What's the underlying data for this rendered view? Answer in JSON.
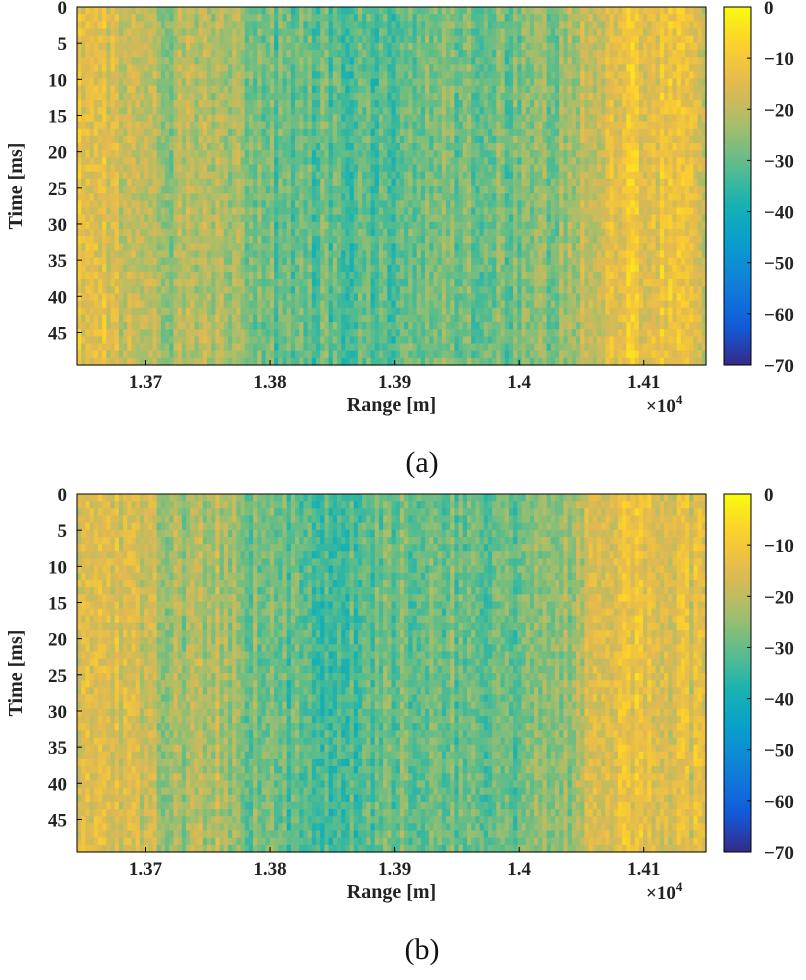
{
  "chart_data": [
    {
      "type": "heatmap",
      "caption": "(a)",
      "xlabel": "Range [m]",
      "ylabel": "Time [ms]",
      "x_ticks": [
        1.37,
        1.38,
        1.39,
        1.4,
        1.41
      ],
      "x_tick_labels": [
        "1.37",
        "1.38",
        "1.39",
        "1.4",
        "1.41"
      ],
      "x_exponent": "×10",
      "x_exponent_power": "4",
      "xlim": [
        1.3645,
        1.415
      ],
      "y_ticks": [
        0,
        5,
        10,
        15,
        20,
        25,
        30,
        35,
        40,
        45
      ],
      "y_tick_labels": [
        "0",
        "5",
        "10",
        "15",
        "20",
        "25",
        "30",
        "35",
        "40",
        "45"
      ],
      "ylim": [
        0,
        49.5
      ],
      "colorbar": {
        "ticks": [
          0,
          -10,
          -20,
          -30,
          -40,
          -50,
          -60,
          -70
        ],
        "tick_labels": [
          "0",
          "−10",
          "−20",
          "−30",
          "−40",
          "−50",
          "−60",
          "−70"
        ],
        "range": [
          -70,
          0
        ],
        "colormap": "parula"
      },
      "intensity_profile_db": {
        "range_m": [
          13645,
          13660,
          13680,
          13700,
          13720,
          13740,
          13760,
          13780,
          13800,
          13830,
          13860,
          13900,
          13930,
          13960,
          14000,
          14030,
          14050,
          14070,
          14090,
          14110,
          14150
        ],
        "level_db": [
          -12,
          -15,
          -17,
          -20,
          -24,
          -22,
          -22,
          -26,
          -29,
          -31,
          -31,
          -30,
          -28,
          -29,
          -29,
          -26,
          -20,
          -16,
          -12,
          -13,
          -16
        ]
      }
    },
    {
      "type": "heatmap",
      "caption": "(b)",
      "xlabel": "Range [m]",
      "ylabel": "Time [ms]",
      "x_ticks": [
        1.37,
        1.38,
        1.39,
        1.4,
        1.41
      ],
      "x_tick_labels": [
        "1.37",
        "1.38",
        "1.39",
        "1.4",
        "1.41"
      ],
      "x_exponent": "×10",
      "x_exponent_power": "4",
      "xlim": [
        1.3645,
        1.415
      ],
      "y_ticks": [
        0,
        5,
        10,
        15,
        20,
        25,
        30,
        35,
        40,
        45
      ],
      "y_tick_labels": [
        "0",
        "5",
        "10",
        "15",
        "20",
        "25",
        "30",
        "35",
        "40",
        "45"
      ],
      "ylim": [
        0,
        49.5
      ],
      "colorbar": {
        "ticks": [
          0,
          -10,
          -20,
          -30,
          -40,
          -50,
          -60,
          -70
        ],
        "tick_labels": [
          "0",
          "−10",
          "−20",
          "−30",
          "−40",
          "−50",
          "−60",
          "−70"
        ],
        "range": [
          -70,
          0
        ],
        "colormap": "parula"
      },
      "intensity_profile_db": {
        "range_m": [
          13645,
          13660,
          13680,
          13700,
          13720,
          13740,
          13760,
          13780,
          13800,
          13830,
          13860,
          13900,
          13930,
          13960,
          14000,
          14030,
          14050,
          14070,
          14090,
          14110,
          14150
        ],
        "level_db": [
          -12,
          -15,
          -17,
          -20,
          -24,
          -22,
          -22,
          -27,
          -30,
          -32,
          -32,
          -30,
          -28,
          -30,
          -30,
          -27,
          -21,
          -17,
          -13,
          -14,
          -16
        ]
      }
    }
  ]
}
